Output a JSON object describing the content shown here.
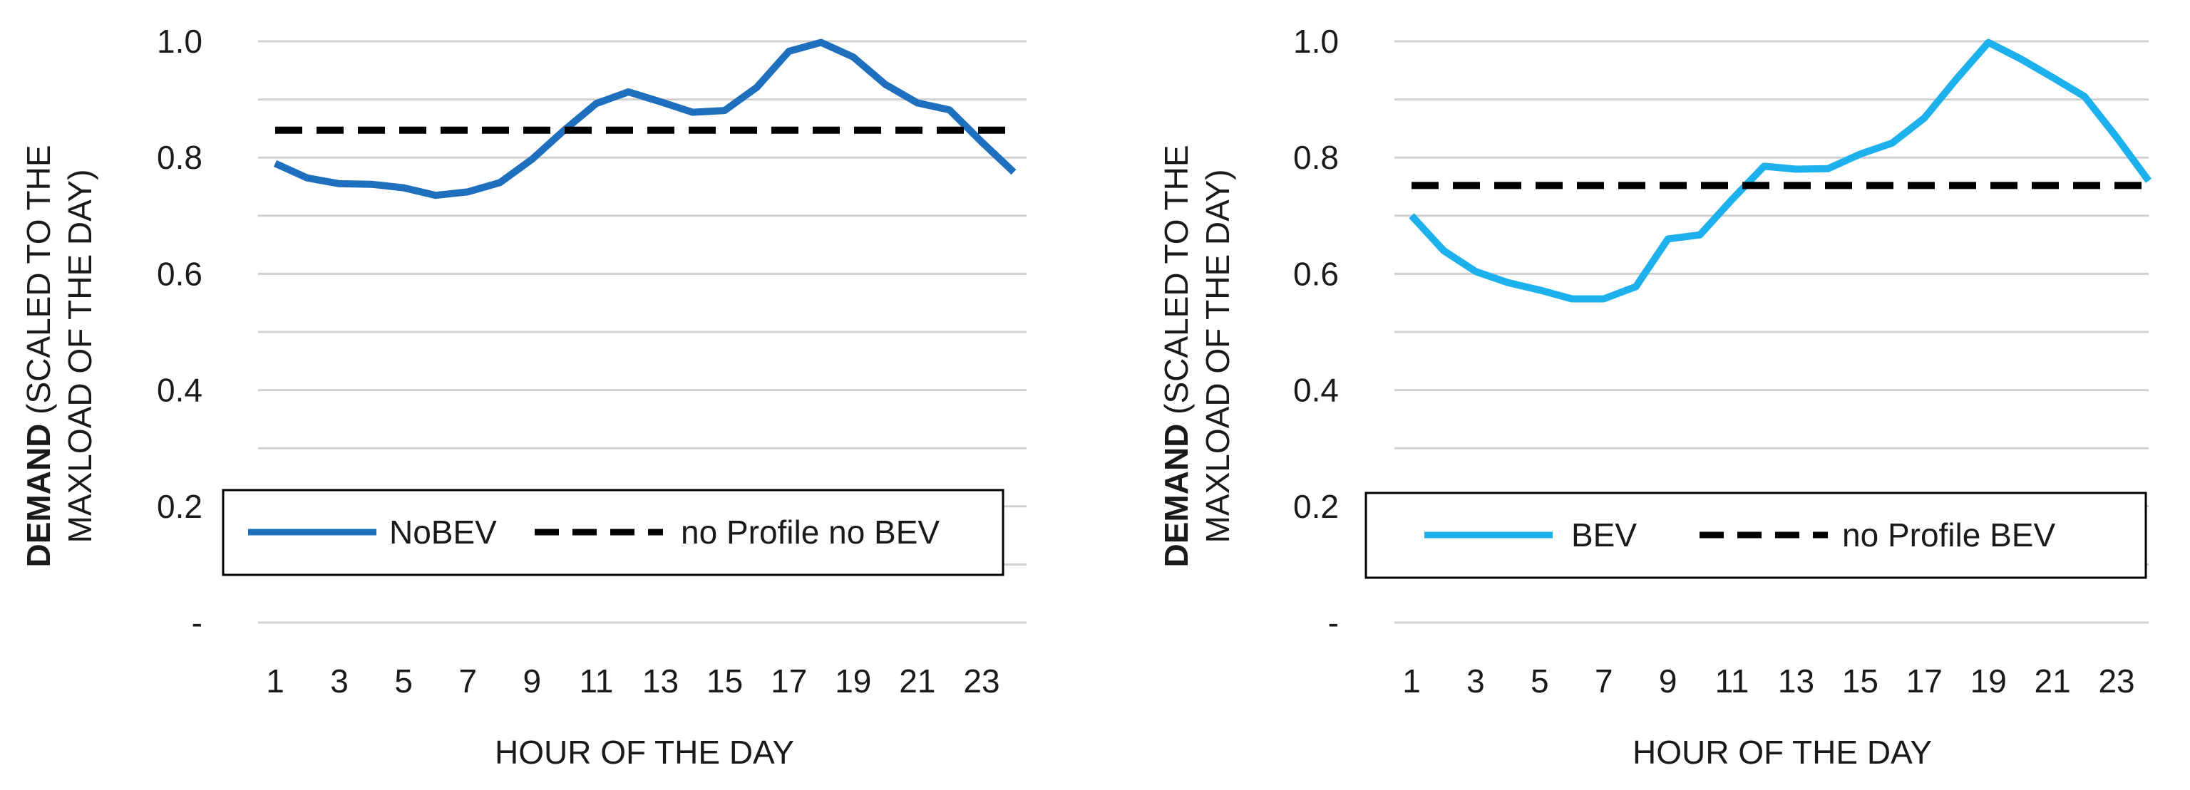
{
  "chart_data": [
    {
      "type": "line",
      "x": [
        1,
        2,
        3,
        4,
        5,
        6,
        7,
        8,
        9,
        10,
        11,
        12,
        13,
        14,
        15,
        16,
        17,
        18,
        19,
        20,
        21,
        22,
        23,
        24
      ],
      "xticks": [
        1,
        3,
        5,
        7,
        9,
        11,
        13,
        15,
        17,
        19,
        21,
        23
      ],
      "series": [
        {
          "name": "NoBEV",
          "color": "#1f6fbf",
          "style": "solid",
          "values": [
            0.79,
            0.765,
            0.755,
            0.754,
            0.748,
            0.735,
            0.741,
            0.757,
            0.797,
            0.847,
            0.893,
            0.913,
            0.896,
            0.878,
            0.881,
            0.921,
            0.983,
            0.998,
            0.973,
            0.926,
            0.894,
            0.882,
            0.827,
            0.775
          ]
        },
        {
          "name": "no Profile no BEV",
          "color": "#000000",
          "style": "dashed",
          "values": [
            0.847,
            0.847,
            0.847,
            0.847,
            0.847,
            0.847,
            0.847,
            0.847,
            0.847,
            0.847,
            0.847,
            0.847,
            0.847,
            0.847,
            0.847,
            0.847,
            0.847,
            0.847,
            0.847,
            0.847,
            0.847,
            0.847,
            0.847,
            0.847
          ]
        }
      ],
      "ylim": [
        0,
        1.0
      ],
      "yticks": [
        0,
        0.2,
        0.4,
        0.6,
        0.8,
        1.0
      ],
      "ytick_labels": [
        "-",
        "0.2",
        "0.4",
        "0.6",
        "0.8",
        "1.0"
      ],
      "ylabel_bold": "DEMAND",
      "ylabel_rest_line1": " (SCALED TO THE",
      "ylabel_line2": "MAXLOAD OF THE DAY)",
      "xlabel": "HOUR OF THE DAY",
      "grid": true,
      "legend_position": "bottom-inside"
    },
    {
      "type": "line",
      "x": [
        1,
        2,
        3,
        4,
        5,
        6,
        7,
        8,
        9,
        10,
        11,
        12,
        13,
        14,
        15,
        16,
        17,
        18,
        19,
        20,
        21,
        22,
        23,
        24
      ],
      "xticks": [
        1,
        3,
        5,
        7,
        9,
        11,
        13,
        15,
        17,
        19,
        21,
        23
      ],
      "series": [
        {
          "name": "BEV",
          "color": "#1cb0ec",
          "style": "solid",
          "values": [
            0.7,
            0.64,
            0.604,
            0.585,
            0.572,
            0.557,
            0.557,
            0.578,
            0.66,
            0.667,
            0.728,
            0.785,
            0.78,
            0.781,
            0.806,
            0.825,
            0.868,
            0.935,
            0.998,
            0.97,
            0.938,
            0.905,
            0.835,
            0.76
          ]
        },
        {
          "name": "no Profile BEV",
          "color": "#000000",
          "style": "dashed",
          "values": [
            0.752,
            0.752,
            0.752,
            0.752,
            0.752,
            0.752,
            0.752,
            0.752,
            0.752,
            0.752,
            0.752,
            0.752,
            0.752,
            0.752,
            0.752,
            0.752,
            0.752,
            0.752,
            0.752,
            0.752,
            0.752,
            0.752,
            0.752,
            0.752
          ]
        }
      ],
      "ylim": [
        0,
        1.0
      ],
      "yticks": [
        0,
        0.2,
        0.4,
        0.6,
        0.8,
        1.0
      ],
      "ytick_labels": [
        "-",
        "0.2",
        "0.4",
        "0.6",
        "0.8",
        "1.0"
      ],
      "ylabel_bold": "DEMAND",
      "ylabel_rest_line1": " (SCALED TO THE",
      "ylabel_line2": "MAXLOAD OF THE DAY)",
      "xlabel": "HOUR OF THE DAY",
      "grid": true,
      "legend_position": "bottom-inside"
    }
  ]
}
